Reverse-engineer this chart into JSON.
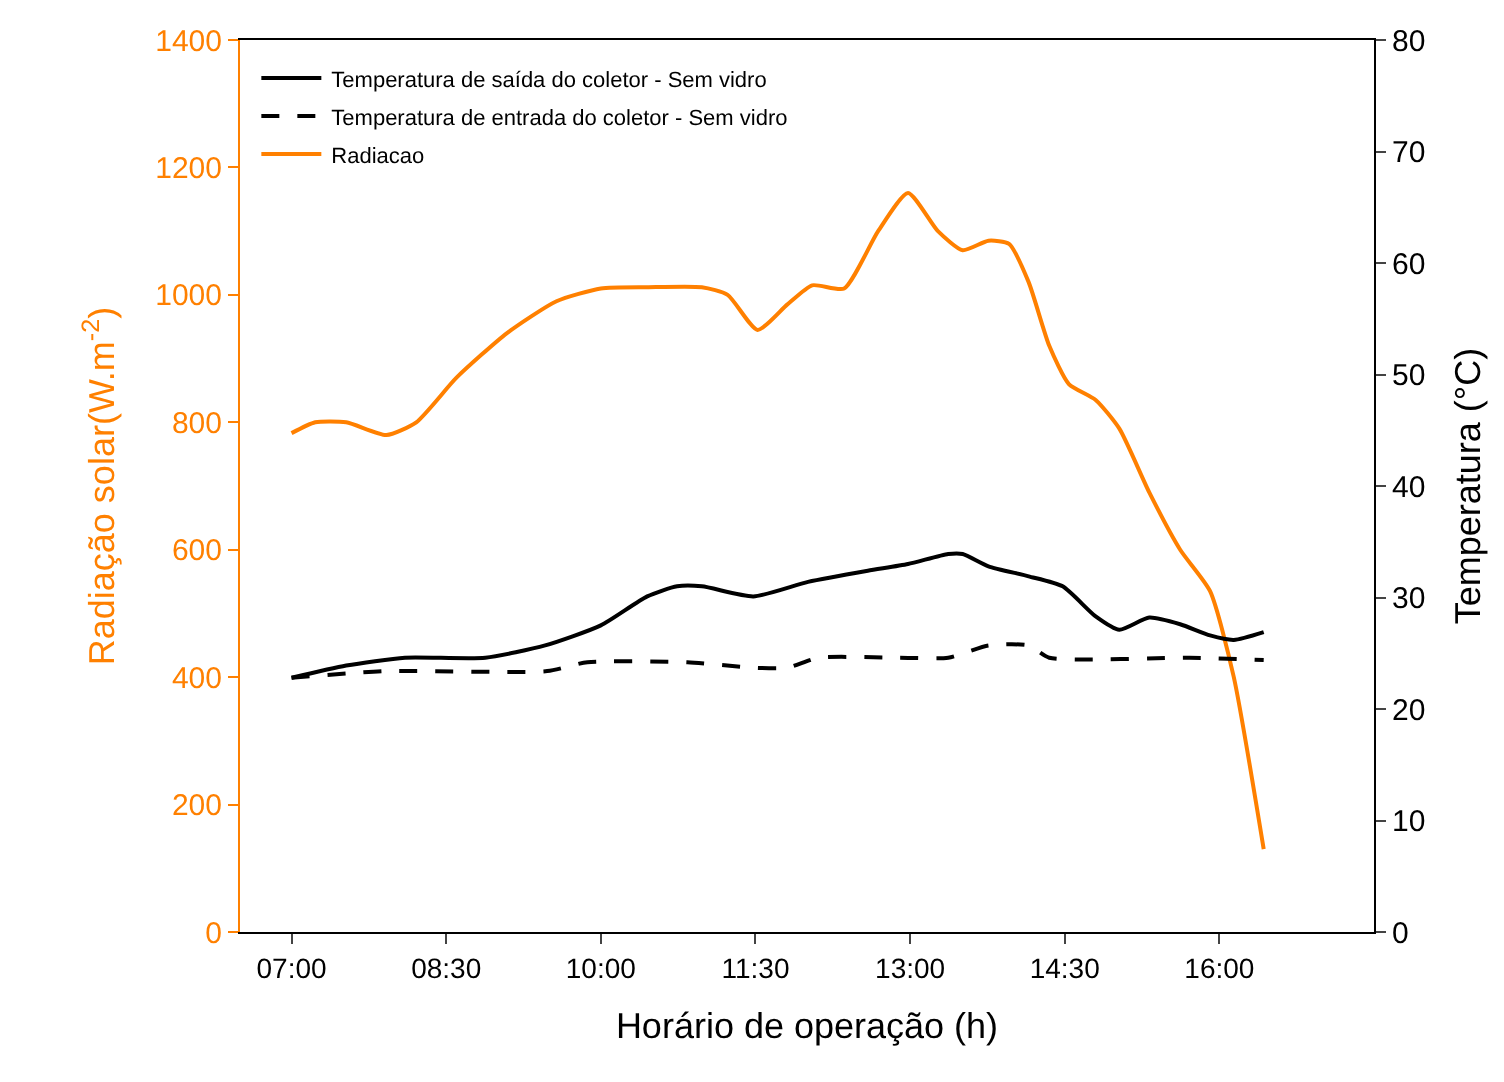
{
  "chart_data": {
    "type": "line",
    "xlabel": "Horário de operação (h)",
    "ylabel": "Radiação solar(W.m$^{-2}$)",
    "y2label": "Temperatura (°C)",
    "xlim": [
      6.5,
      17.5
    ],
    "xticks": [
      {
        "value": 7,
        "label": "07:00"
      },
      {
        "value": 8.5,
        "label": "08:30"
      },
      {
        "value": 10,
        "label": "10:00"
      },
      {
        "value": 11.5,
        "label": "11:30"
      },
      {
        "value": 13,
        "label": "13:00"
      },
      {
        "value": 14.5,
        "label": "14:30"
      },
      {
        "value": 16,
        "label": "16:00"
      }
    ],
    "ylim": [
      0,
      1400
    ],
    "yticks": [
      0,
      200,
      400,
      600,
      800,
      1000,
      1200,
      1400
    ],
    "y2lim": [
      0,
      80
    ],
    "y2ticks": [
      0,
      10,
      20,
      30,
      40,
      50,
      60,
      70,
      80
    ],
    "legend": "top left",
    "marker": "none",
    "series": [
      {
        "name": "Temperatura de saída do coletor - Sem vidro",
        "color": "#000000",
        "axis": "y2",
        "line_style": "solid",
        "x": [
          7.0,
          7.53,
          8.1,
          8.88,
          9.46,
          10.0,
          10.45,
          10.74,
          10.98,
          11.48,
          12.01,
          12.59,
          12.98,
          13.37,
          13.51,
          13.76,
          14.15,
          14.48,
          14.8,
          15.03,
          15.32,
          15.62,
          15.91,
          16.14,
          16.43
        ],
        "values": [
          22.8,
          23.9,
          24.6,
          24.6,
          25.7,
          27.5,
          30.1,
          31.0,
          31.0,
          30.1,
          31.4,
          32.4,
          33.0,
          33.9,
          33.9,
          32.8,
          31.9,
          31.0,
          28.3,
          27.1,
          28.2,
          27.6,
          26.6,
          26.2,
          26.9
        ]
      },
      {
        "name": "Temperatura de entrada do coletor - Sem vidro",
        "color": "#000000",
        "axis": "y2",
        "line_style": "dashed",
        "x": [
          7.0,
          7.92,
          9.48,
          9.87,
          10.84,
          11.48,
          11.81,
          12.11,
          12.89,
          13.37,
          13.76,
          14.15,
          14.35,
          15.71,
          16.43
        ],
        "values": [
          22.8,
          23.4,
          23.4,
          24.2,
          24.2,
          23.7,
          23.7,
          24.6,
          24.6,
          24.6,
          25.7,
          25.7,
          24.6,
          24.6,
          24.4
        ]
      },
      {
        "name": "Radiacao",
        "color": "#ff8000",
        "line_style": "solid",
        "x": [
          7.0,
          7.23,
          7.53,
          7.92,
          8.21,
          8.6,
          9.09,
          9.57,
          10.0,
          10.45,
          10.98,
          11.23,
          11.52,
          11.81,
          12.05,
          12.36,
          12.69,
          12.98,
          13.27,
          13.51,
          13.76,
          13.96,
          14.15,
          14.35,
          14.54,
          14.8,
          15.03,
          15.32,
          15.62,
          15.91,
          16.14,
          16.43
        ],
        "values": [
          783,
          800,
          800,
          780,
          800,
          870,
          940,
          990,
          1010,
          1012,
          1012,
          1000,
          945,
          985,
          1015,
          1010,
          1100,
          1160,
          1100,
          1070,
          1085,
          1080,
          1020,
          920,
          860,
          835,
          790,
          690,
          600,
          535,
          400,
          130
        ]
      }
    ]
  }
}
